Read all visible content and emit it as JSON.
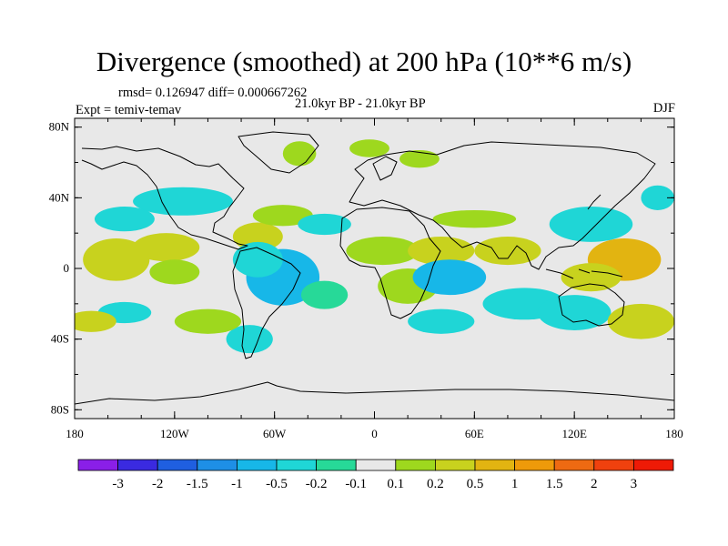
{
  "title": "Divergence (smoothed) at 200 hPa (10**6 m/s)",
  "stats": "rmsd= 0.126947 diff= 0.000667262",
  "experiment": "Expt = temiv-temav",
  "period": "21.0kyr BP - 21.0kyr BP",
  "season": "DJF",
  "map": {
    "background_color": "#e8e8e8",
    "lat_ticks": [
      {
        "value": 80,
        "label": "80N"
      },
      {
        "value": 40,
        "label": "40N"
      },
      {
        "value": 0,
        "label": "0"
      },
      {
        "value": -40,
        "label": "40S"
      },
      {
        "value": -80,
        "label": "80S"
      }
    ],
    "lon_ticks": [
      {
        "value": -180,
        "label": "180"
      },
      {
        "value": -120,
        "label": "120W"
      },
      {
        "value": -60,
        "label": "60W"
      },
      {
        "value": 0,
        "label": "0"
      },
      {
        "value": 60,
        "label": "60E"
      },
      {
        "value": 120,
        "label": "120E"
      },
      {
        "value": 180,
        "label": "180"
      }
    ]
  },
  "colorbar": {
    "colors": [
      "#8a1fe8",
      "#3a2ae0",
      "#1f5fe0",
      "#1e8fe6",
      "#17b7e8",
      "#1fd6d6",
      "#27d998",
      "#e8e8e8",
      "#9ed81e",
      "#c8d21e",
      "#e2b411",
      "#ee9a0a",
      "#ee6a12",
      "#f0410e",
      "#ee1a06"
    ],
    "labels": [
      "-3",
      "-2",
      "-1.5",
      "-1",
      "-0.5",
      "-0.2",
      "-0.1",
      "0.1",
      "0.2",
      "0.5",
      "1",
      "1.5",
      "2",
      "3"
    ]
  },
  "field_blobs": [
    {
      "lon": -45,
      "lat": 65,
      "rx": 10,
      "ry": 7,
      "color": "#9ed81e"
    },
    {
      "lon": -3,
      "lat": 68,
      "rx": 12,
      "ry": 5,
      "color": "#9ed81e"
    },
    {
      "lon": 27,
      "lat": 62,
      "rx": 12,
      "ry": 5,
      "color": "#9ed81e"
    },
    {
      "lon": -115,
      "lat": 38,
      "rx": 30,
      "ry": 8,
      "color": "#1fd6d6"
    },
    {
      "lon": -150,
      "lat": 28,
      "rx": 18,
      "ry": 7,
      "color": "#1fd6d6"
    },
    {
      "lon": -155,
      "lat": 5,
      "rx": 20,
      "ry": 12,
      "color": "#c8d21e"
    },
    {
      "lon": -125,
      "lat": 12,
      "rx": 20,
      "ry": 8,
      "color": "#c8d21e"
    },
    {
      "lon": -120,
      "lat": -2,
      "rx": 15,
      "ry": 7,
      "color": "#9ed81e"
    },
    {
      "lon": -70,
      "lat": 18,
      "rx": 15,
      "ry": 8,
      "color": "#c8d21e"
    },
    {
      "lon": -55,
      "lat": 30,
      "rx": 18,
      "ry": 6,
      "color": "#9ed81e"
    },
    {
      "lon": -30,
      "lat": 25,
      "rx": 16,
      "ry": 6,
      "color": "#1fd6d6"
    },
    {
      "lon": -55,
      "lat": -5,
      "rx": 22,
      "ry": 16,
      "color": "#17b7e8"
    },
    {
      "lon": -70,
      "lat": 5,
      "rx": 15,
      "ry": 10,
      "color": "#1fd6d6"
    },
    {
      "lon": -75,
      "lat": -40,
      "rx": 14,
      "ry": 8,
      "color": "#1fd6d6"
    },
    {
      "lon": -30,
      "lat": -15,
      "rx": 14,
      "ry": 8,
      "color": "#27d998"
    },
    {
      "lon": -150,
      "lat": -25,
      "rx": 16,
      "ry": 6,
      "color": "#1fd6d6"
    },
    {
      "lon": -170,
      "lat": -30,
      "rx": 15,
      "ry": 6,
      "color": "#c8d21e"
    },
    {
      "lon": -100,
      "lat": -30,
      "rx": 20,
      "ry": 7,
      "color": "#9ed81e"
    },
    {
      "lon": 5,
      "lat": 10,
      "rx": 22,
      "ry": 8,
      "color": "#9ed81e"
    },
    {
      "lon": 40,
      "lat": 10,
      "rx": 20,
      "ry": 8,
      "color": "#c8d21e"
    },
    {
      "lon": 20,
      "lat": -10,
      "rx": 18,
      "ry": 10,
      "color": "#9ed81e"
    },
    {
      "lon": 45,
      "lat": -5,
      "rx": 22,
      "ry": 10,
      "color": "#17b7e8"
    },
    {
      "lon": 40,
      "lat": -30,
      "rx": 20,
      "ry": 7,
      "color": "#1fd6d6"
    },
    {
      "lon": 60,
      "lat": 28,
      "rx": 25,
      "ry": 5,
      "color": "#9ed81e"
    },
    {
      "lon": 80,
      "lat": 10,
      "rx": 20,
      "ry": 8,
      "color": "#c8d21e"
    },
    {
      "lon": 90,
      "lat": -20,
      "rx": 25,
      "ry": 9,
      "color": "#1fd6d6"
    },
    {
      "lon": 130,
      "lat": 25,
      "rx": 25,
      "ry": 10,
      "color": "#1fd6d6"
    },
    {
      "lon": 150,
      "lat": 5,
      "rx": 22,
      "ry": 12,
      "color": "#e2b411"
    },
    {
      "lon": 130,
      "lat": -5,
      "rx": 18,
      "ry": 8,
      "color": "#c8d21e"
    },
    {
      "lon": 120,
      "lat": -25,
      "rx": 22,
      "ry": 10,
      "color": "#1fd6d6"
    },
    {
      "lon": 160,
      "lat": -30,
      "rx": 20,
      "ry": 10,
      "color": "#c8d21e"
    },
    {
      "lon": 170,
      "lat": 40,
      "rx": 10,
      "ry": 7,
      "color": "#1fd6d6"
    }
  ]
}
